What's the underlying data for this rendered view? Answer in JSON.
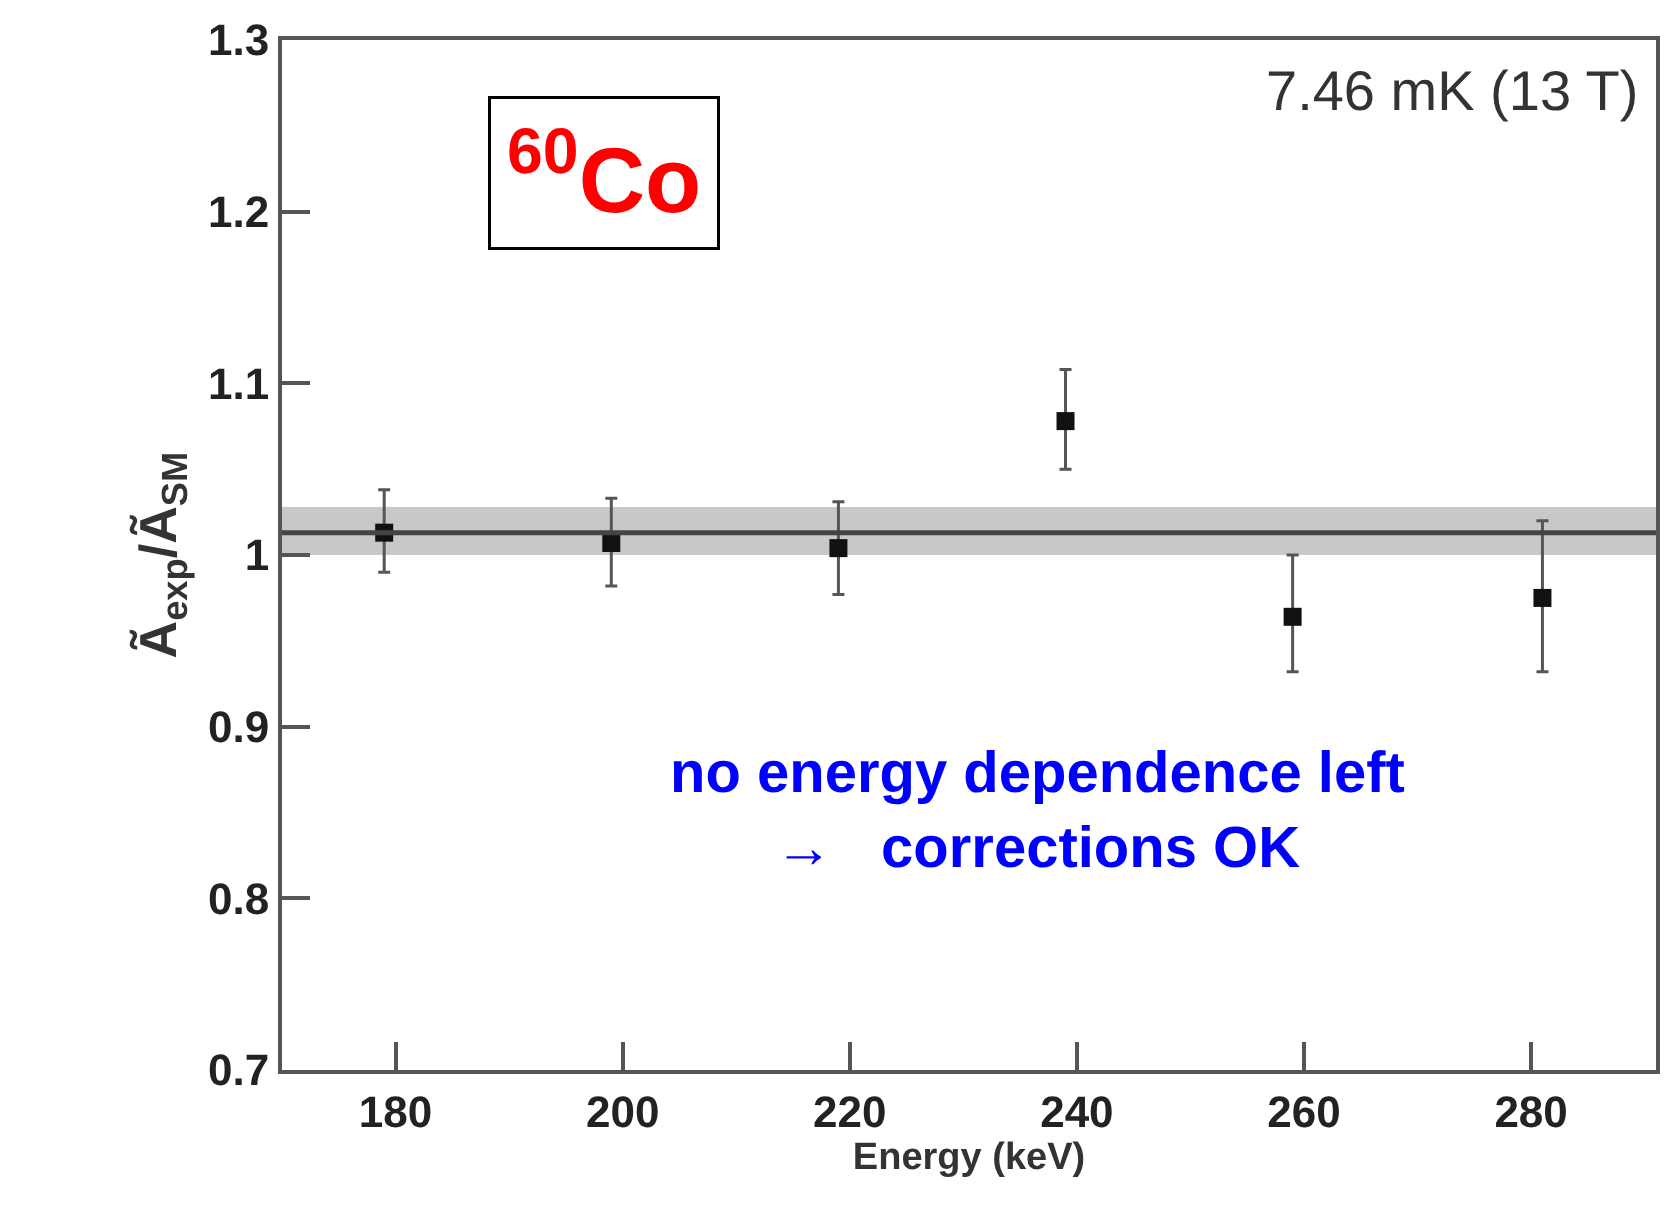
{
  "chart_data": {
    "type": "scatter",
    "xlabel": "Energy (keV)",
    "ylabel": "Ã$_{exp}$/Ã$_{SM}$",
    "x": [
      179,
      199,
      219,
      239,
      259,
      281
    ],
    "series": [
      {
        "color": "#111111",
        "values": [
          1.013,
          1.007,
          1.004,
          1.078,
          0.964,
          0.975
        ],
        "errors": [
          [
            0.99,
            1.038
          ],
          [
            0.982,
            1.033
          ],
          [
            0.977,
            1.031
          ],
          [
            1.05,
            1.108
          ],
          [
            0.932,
            1.0
          ],
          [
            0.932,
            1.02
          ]
        ]
      }
    ],
    "marker": "square",
    "xlim": [
      170,
      291
    ],
    "xticks": [
      180,
      200,
      220,
      240,
      260,
      280
    ],
    "ylim": [
      0.7,
      1.3
    ],
    "yticks": [
      0.7,
      0.8,
      0.9,
      1,
      1.1,
      1.2,
      1.3
    ],
    "ref_lines": [
      {
        "axis": "y",
        "value": 1.013,
        "color": "#444444"
      }
    ],
    "bands": [
      {
        "axis": "y",
        "from": 1.0,
        "to": 1.028,
        "color": "#c8c8c8"
      }
    ],
    "annotations": [
      "$^{60}$Co",
      "7.46 mK (13 T)",
      "no energy dependence left\n→   corrections OK"
    ],
    "grid": false,
    "legend": false
  }
}
